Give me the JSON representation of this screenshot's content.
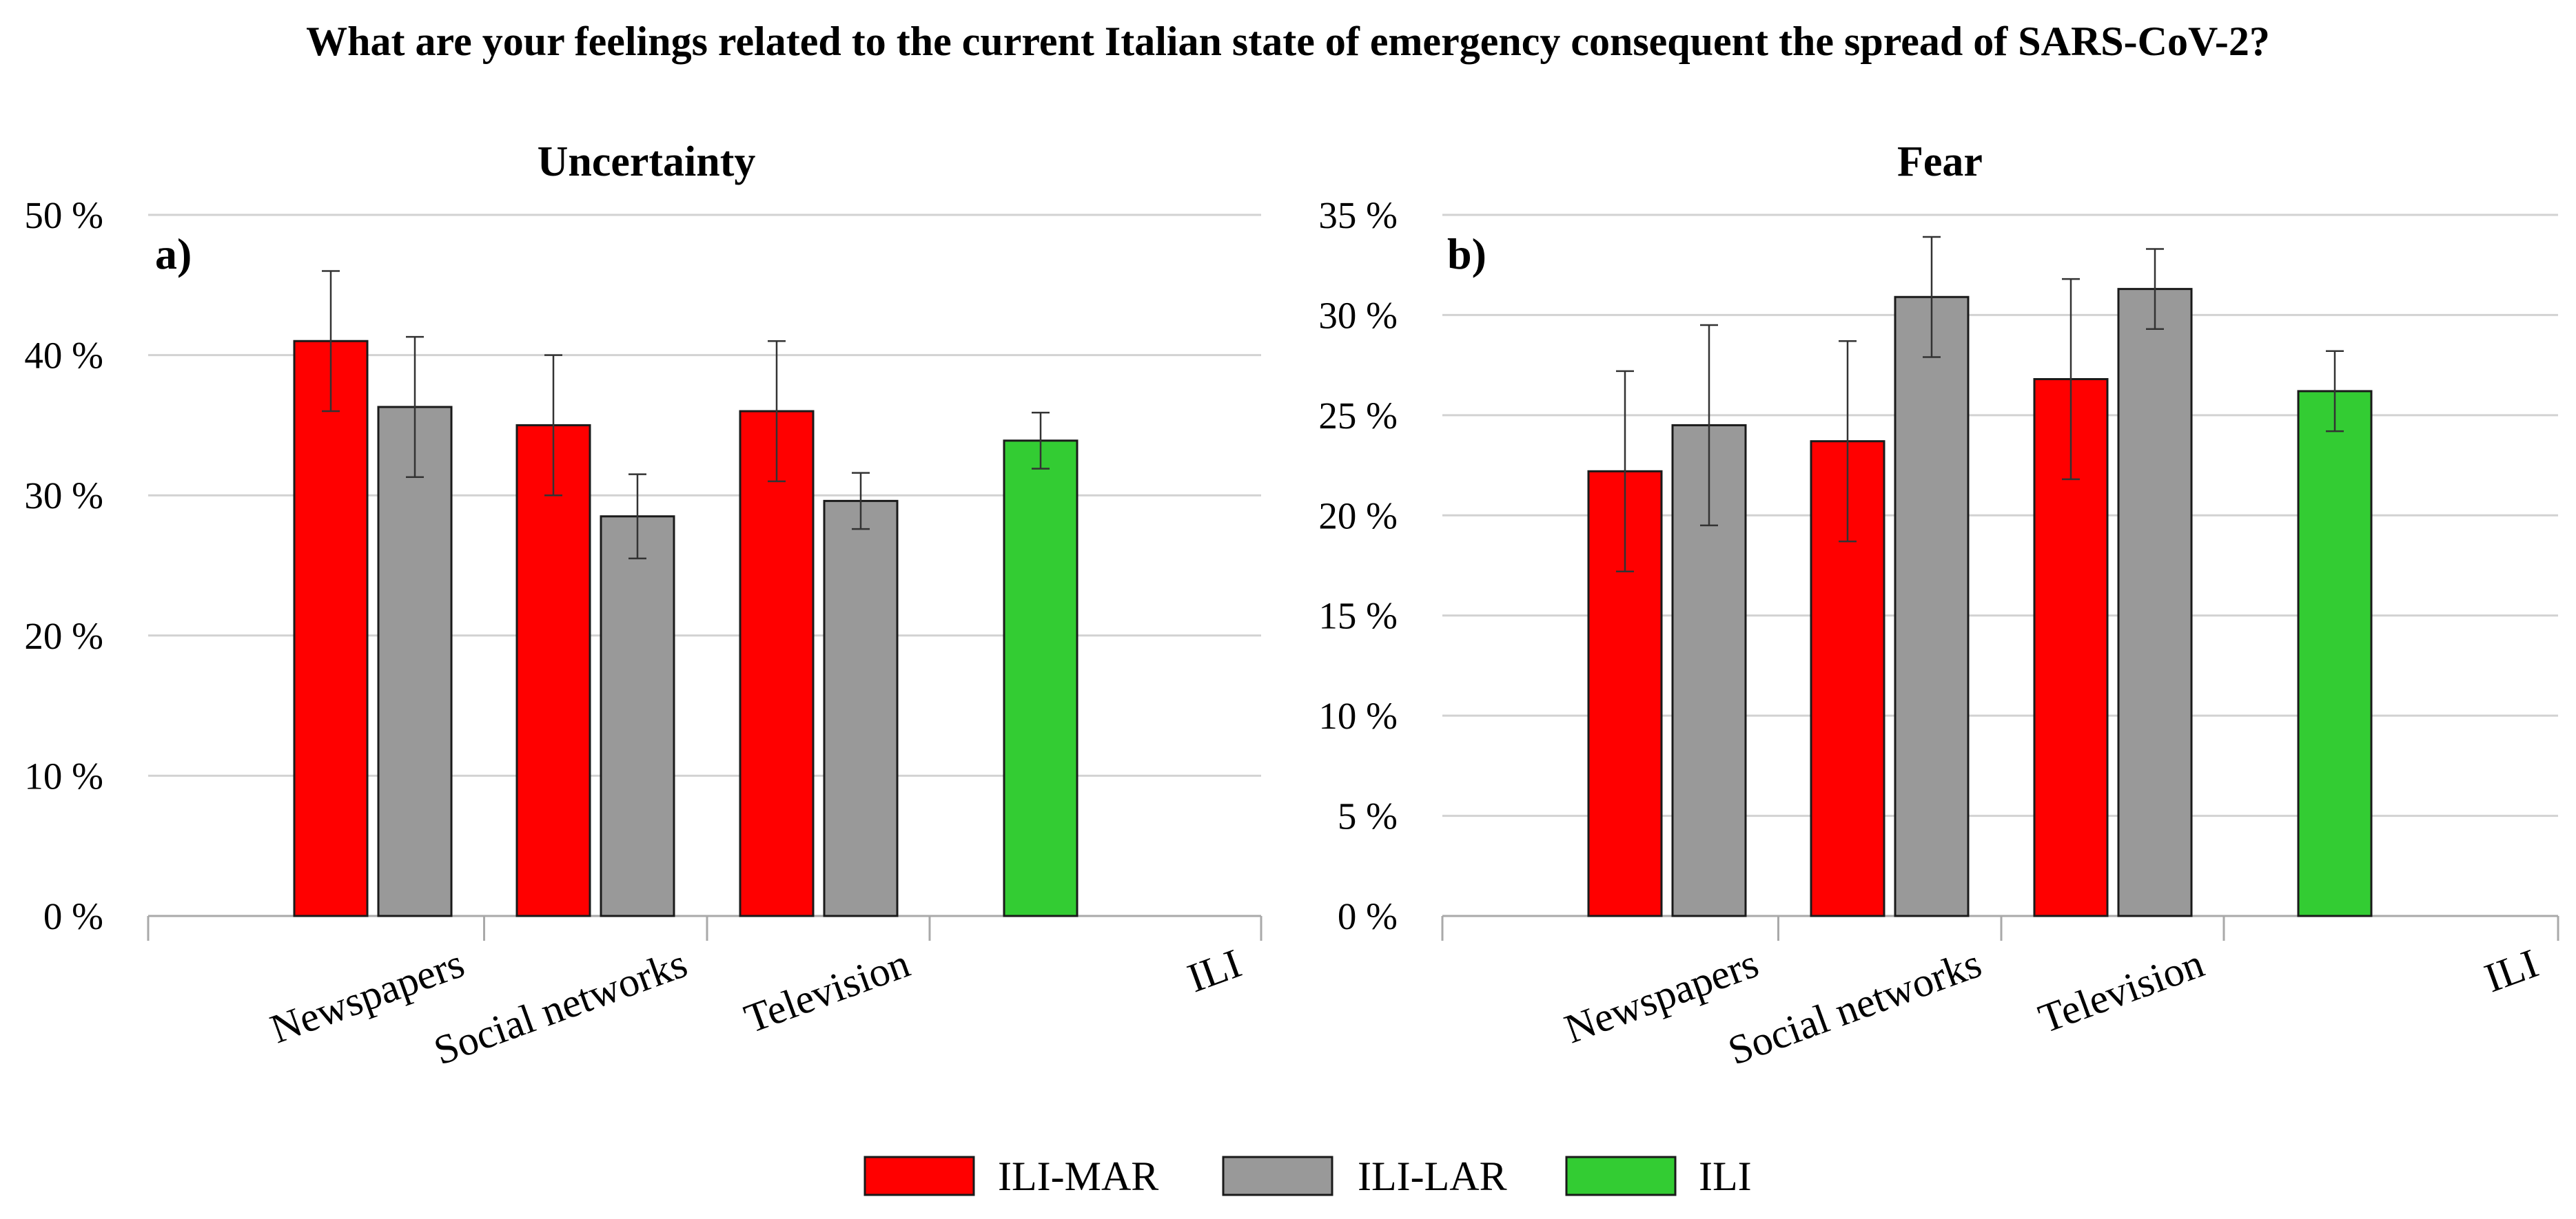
{
  "figure": {
    "title": "What are your feelings related to the current Italian state of emergency consequent the spread of SARS-CoV-2?"
  },
  "colors": {
    "ILI-MAR": "#ff0000",
    "ILI-LAR": "#999999",
    "ILI": "#33cc33",
    "grid": "#d2d2d2",
    "axis": "#a9a9a9"
  },
  "legend": {
    "items": [
      {
        "label": "ILI-MAR",
        "color": "#ff0000"
      },
      {
        "label": "ILI-LAR",
        "color": "#999999"
      },
      {
        "label": "ILI",
        "color": "#33cc33"
      }
    ]
  },
  "chart_data": [
    {
      "type": "bar",
      "panel": "a)",
      "title": "Uncertainty",
      "ylabel": "",
      "xlabel": "",
      "ylim": [
        0,
        50
      ],
      "yticks": [
        0,
        10,
        20,
        30,
        40,
        50
      ],
      "ytick_labels": [
        "0 %",
        "10 %",
        "20 %",
        "30 %",
        "40 %",
        "50 %"
      ],
      "grid": true,
      "categories": [
        "Newspapers",
        "Social networks",
        "Television",
        "ILI"
      ],
      "series": [
        {
          "name": "ILI-MAR",
          "color": "#ff0000",
          "values": [
            41,
            35,
            36,
            null
          ],
          "errors": [
            5,
            5,
            5,
            null
          ]
        },
        {
          "name": "ILI-LAR",
          "color": "#999999",
          "values": [
            36.3,
            28.5,
            29.6,
            null
          ],
          "errors": [
            5,
            3,
            2,
            null
          ]
        },
        {
          "name": "ILI",
          "color": "#33cc33",
          "values": [
            null,
            null,
            null,
            33.9
          ],
          "errors": [
            null,
            null,
            null,
            2
          ]
        }
      ]
    },
    {
      "type": "bar",
      "panel": "b)",
      "title": "Fear",
      "ylabel": "",
      "xlabel": "",
      "ylim": [
        0,
        35
      ],
      "yticks": [
        0,
        5,
        10,
        15,
        20,
        25,
        30,
        35
      ],
      "ytick_labels": [
        "0 %",
        "5 %",
        "10 %",
        "15 %",
        "20 %",
        "25 %",
        "30 %",
        "35 %"
      ],
      "grid": true,
      "categories": [
        "Newspapers",
        "Social networks",
        "Television",
        "ILI"
      ],
      "series": [
        {
          "name": "ILI-MAR",
          "color": "#ff0000",
          "values": [
            22.2,
            23.7,
            26.8,
            null
          ],
          "errors": [
            5,
            5,
            5,
            null
          ]
        },
        {
          "name": "ILI-LAR",
          "color": "#999999",
          "values": [
            24.5,
            30.9,
            31.3,
            null
          ],
          "errors": [
            5,
            3,
            2,
            null
          ]
        },
        {
          "name": "ILI",
          "color": "#33cc33",
          "values": [
            null,
            null,
            null,
            26.2
          ],
          "errors": [
            null,
            null,
            null,
            2
          ]
        }
      ]
    }
  ]
}
